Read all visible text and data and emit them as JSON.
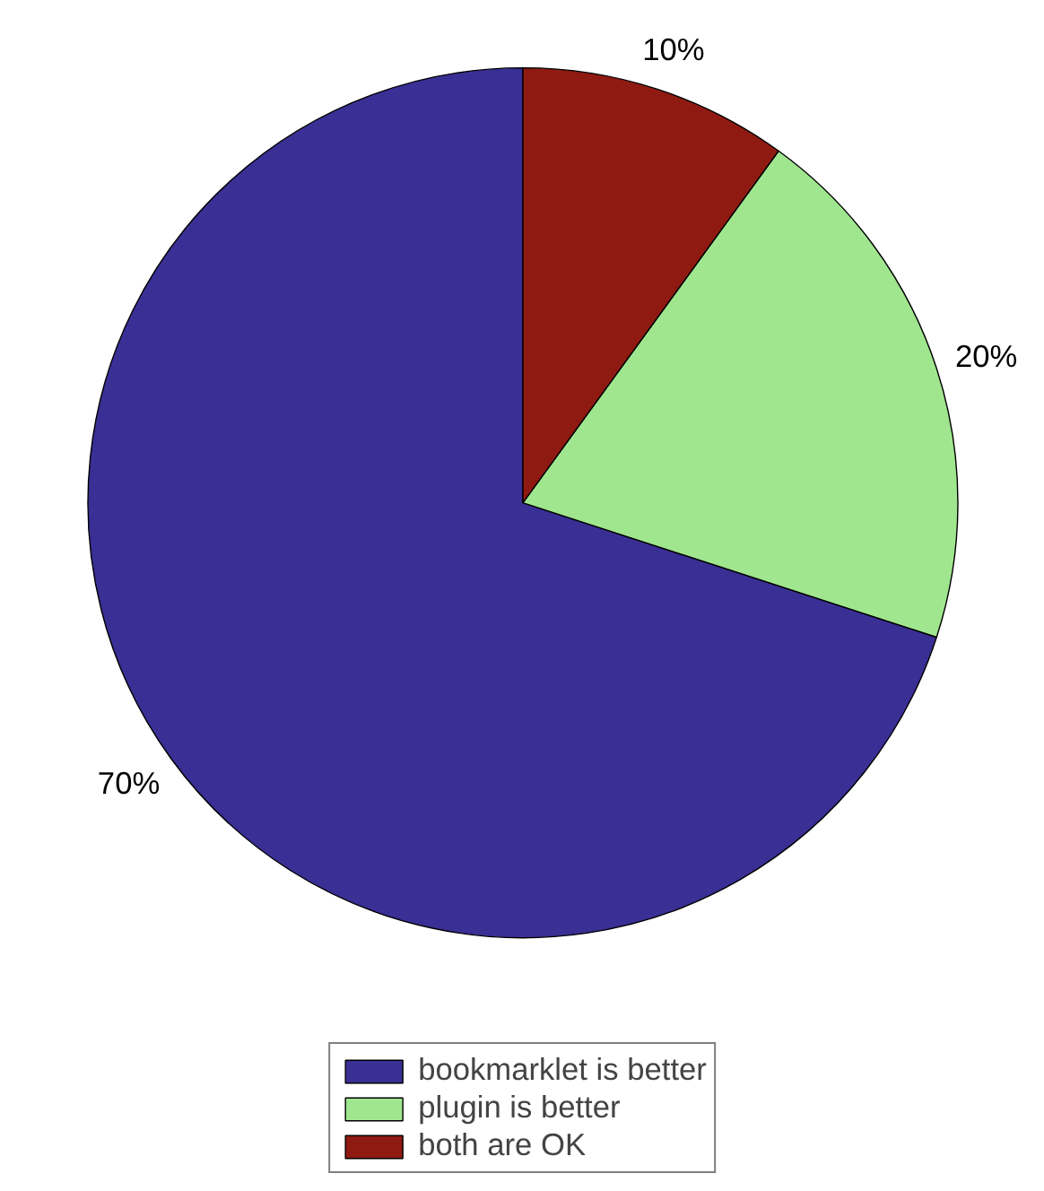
{
  "chart_data": {
    "type": "pie",
    "categories": [
      "bookmarklet is better",
      "plugin is better",
      "both are OK"
    ],
    "values": [
      70,
      20,
      10
    ],
    "colors": [
      "#3a2f94",
      "#a0e68f",
      "#8f1a12"
    ],
    "value_labels": [
      "70%",
      "20%",
      "10%"
    ],
    "legend": "bottom"
  }
}
